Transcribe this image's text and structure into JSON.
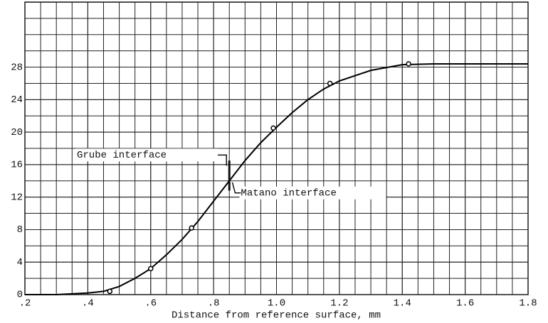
{
  "chart_data": {
    "type": "line",
    "x_label": "Distance from reference surface, mm",
    "xlim": [
      0.2,
      1.8
    ],
    "xticks": [
      {
        "value": 0.2,
        "label": ".2"
      },
      {
        "value": 0.4,
        "label": ".4"
      },
      {
        "value": 0.6,
        "label": ".6"
      },
      {
        "value": 0.8,
        "label": ".8"
      },
      {
        "value": 1.0,
        "label": "1.0"
      },
      1.2,
      1.4,
      1.6,
      1.8
    ],
    "ylim": [
      0,
      36
    ],
    "yticks": [
      0,
      4,
      8,
      12,
      16,
      20,
      24,
      28
    ],
    "grid": true,
    "series": [
      {
        "color": "#000000",
        "marker": false,
        "x": [
          0.2,
          0.3,
          0.4,
          0.45,
          0.5,
          0.55,
          0.6,
          0.65,
          0.7,
          0.75,
          0.8,
          0.85,
          0.9,
          0.95,
          1.0,
          1.05,
          1.1,
          1.15,
          1.2,
          1.3,
          1.4,
          1.5,
          1.6,
          1.7,
          1.8
        ],
        "values": [
          0,
          0,
          0.2,
          0.4,
          1.0,
          2.0,
          3.2,
          4.9,
          6.8,
          9.0,
          11.5,
          14.0,
          16.5,
          18.7,
          20.6,
          22.4,
          24.0,
          25.3,
          26.3,
          27.6,
          28.3,
          28.4,
          28.4,
          28.4,
          28.4
        ]
      },
      {
        "color": "#000000",
        "marker": true,
        "x": [
          0.47,
          0.6,
          0.73,
          0.99,
          1.17,
          1.42
        ],
        "values": [
          0.4,
          3.2,
          8.2,
          20.5,
          26.0,
          28.4
        ]
      }
    ],
    "annotations": [
      {
        "text": "Grube interface",
        "x": 0.85,
        "y": 15
      },
      {
        "text": "Matano interface",
        "x": 0.855,
        "y": 14
      }
    ]
  }
}
